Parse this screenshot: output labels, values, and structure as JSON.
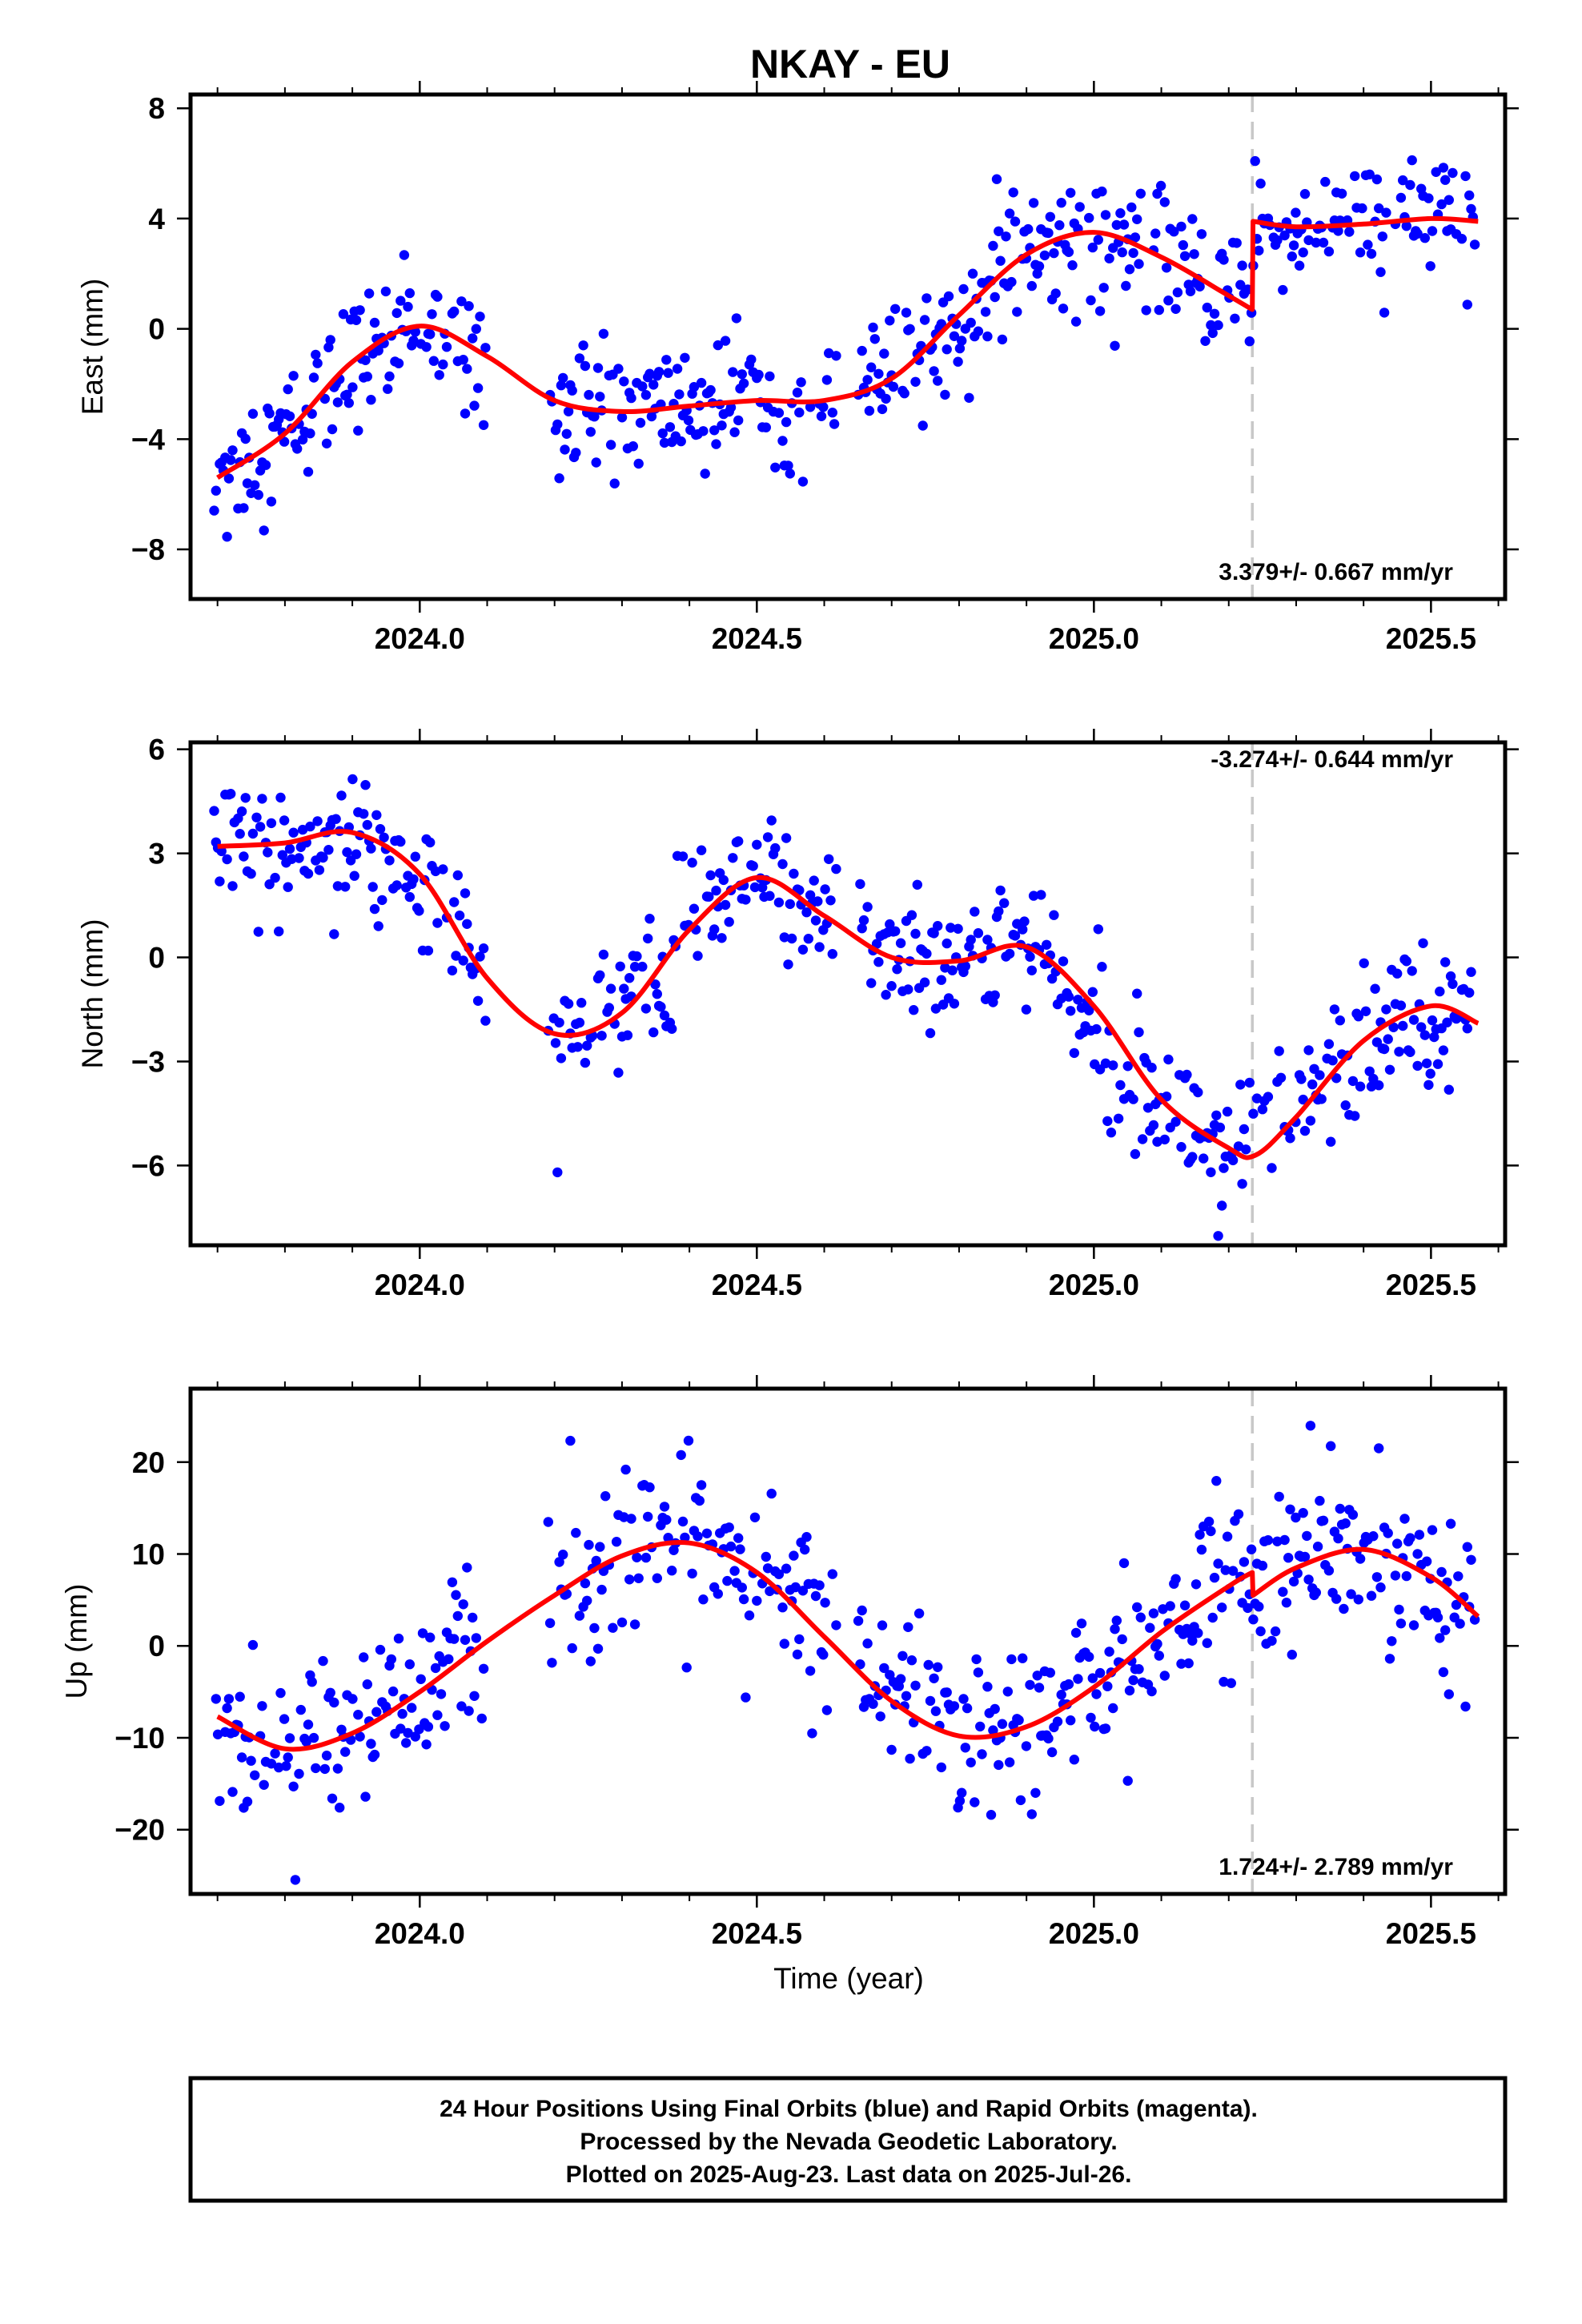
{
  "title": "NKAY - EU",
  "xlabel": "Time (year)",
  "footer": {
    "line1": "24 Hour Positions Using Final Orbits (blue) and Rapid Orbits (magenta).",
    "line2": "Processed by the Nevada Geodetic Laboratory.",
    "line3": "Plotted on 2025-Aug-23. Last data on 2025-Jul-26."
  },
  "colors": {
    "data_points": "#0000ff",
    "model_fit": "#ff0000",
    "break_line": "#c8c8c8",
    "frame": "#000000"
  },
  "chart_data": [
    {
      "type": "scatter",
      "panel": "east",
      "ylabel": "East (mm)",
      "rate_label": "3.379+/- 0.667 mm/yr",
      "xlim": [
        2023.66,
        2025.61
      ],
      "ylim": [
        -9.8,
        8.5
      ],
      "xticks": [
        2024.0,
        2024.5,
        2025.0,
        2025.5
      ],
      "xtick_labels": [
        "2024.0",
        "2024.5",
        "2025.0",
        "2025.5"
      ],
      "yticks": [
        -8,
        -4,
        0,
        4,
        8
      ],
      "ytick_labels": [
        "−8",
        "−4",
        "0",
        "4",
        "8"
      ],
      "break_epoch": 2025.235,
      "model": {
        "x": [
          2023.7,
          2023.8,
          2023.9,
          2024.0,
          2024.1,
          2024.2,
          2024.3,
          2024.4,
          2024.5,
          2024.6,
          2024.7,
          2024.8,
          2024.9,
          2025.0,
          2025.1,
          2025.2,
          2025.235,
          2025.236,
          2025.3,
          2025.4,
          2025.5,
          2025.57
        ],
        "y": [
          -5.4,
          -3.8,
          -1.2,
          0.1,
          -1.0,
          -2.6,
          -3.0,
          -2.8,
          -2.6,
          -2.6,
          -1.8,
          0.5,
          2.7,
          3.5,
          2.6,
          1.2,
          0.7,
          3.9,
          3.7,
          3.8,
          4.0,
          3.9
        ]
      },
      "trend_start": -5.0,
      "noise": 1.15
    },
    {
      "type": "scatter",
      "panel": "north",
      "ylabel": "North (mm)",
      "rate_label": "-3.274+/- 0.644 mm/yr",
      "xlim": [
        2023.66,
        2025.61
      ],
      "ylim": [
        -8.3,
        6.2
      ],
      "xticks": [
        2024.0,
        2024.5,
        2025.0,
        2025.5
      ],
      "xtick_labels": [
        "2024.0",
        "2024.5",
        "2025.0",
        "2025.5"
      ],
      "yticks": [
        -6,
        -3,
        0,
        3,
        6
      ],
      "ytick_labels": [
        "−6",
        "−3",
        "0",
        "3",
        "6"
      ],
      "break_epoch": 2025.235,
      "model": {
        "x": [
          2023.7,
          2023.8,
          2023.9,
          2024.0,
          2024.1,
          2024.2,
          2024.3,
          2024.4,
          2024.5,
          2024.6,
          2024.7,
          2024.8,
          2024.9,
          2025.0,
          2025.1,
          2025.2,
          2025.24,
          2025.3,
          2025.4,
          2025.5,
          2025.57
        ],
        "y": [
          3.2,
          3.3,
          3.6,
          2.4,
          -0.6,
          -2.2,
          -1.6,
          0.8,
          2.3,
          1.2,
          0.0,
          -0.1,
          0.3,
          -1.4,
          -4.1,
          -5.5,
          -5.7,
          -4.6,
          -2.4,
          -1.4,
          -1.9
        ]
      },
      "noise": 1.0
    },
    {
      "type": "scatter",
      "panel": "up",
      "ylabel": "Up (mm)",
      "rate_label": "1.724+/- 2.789 mm/yr",
      "xlim": [
        2023.66,
        2025.61
      ],
      "ylim": [
        -27.0,
        28.0
      ],
      "xticks": [
        2024.0,
        2024.5,
        2025.0,
        2025.5
      ],
      "xtick_labels": [
        "2024.0",
        "2024.5",
        "2025.0",
        "2025.5"
      ],
      "yticks": [
        -20,
        -10,
        0,
        10,
        20
      ],
      "ytick_labels": [
        "−20",
        "−10",
        "0",
        "10",
        "20"
      ],
      "break_epoch": 2025.235,
      "model": {
        "x": [
          2023.7,
          2023.8,
          2023.9,
          2024.0,
          2024.1,
          2024.2,
          2024.3,
          2024.4,
          2024.5,
          2024.6,
          2024.7,
          2024.8,
          2024.9,
          2025.0,
          2025.1,
          2025.2,
          2025.235,
          2025.236,
          2025.3,
          2025.4,
          2025.5,
          2025.57
        ],
        "y": [
          -7.7,
          -11.2,
          -9.5,
          -5.0,
          0.5,
          5.5,
          9.8,
          11.2,
          8.0,
          1.0,
          -6.0,
          -9.8,
          -8.8,
          -4.5,
          1.5,
          6.5,
          8.0,
          5.5,
          8.5,
          10.5,
          7.5,
          3.2
        ]
      },
      "noise": 4.5
    }
  ]
}
